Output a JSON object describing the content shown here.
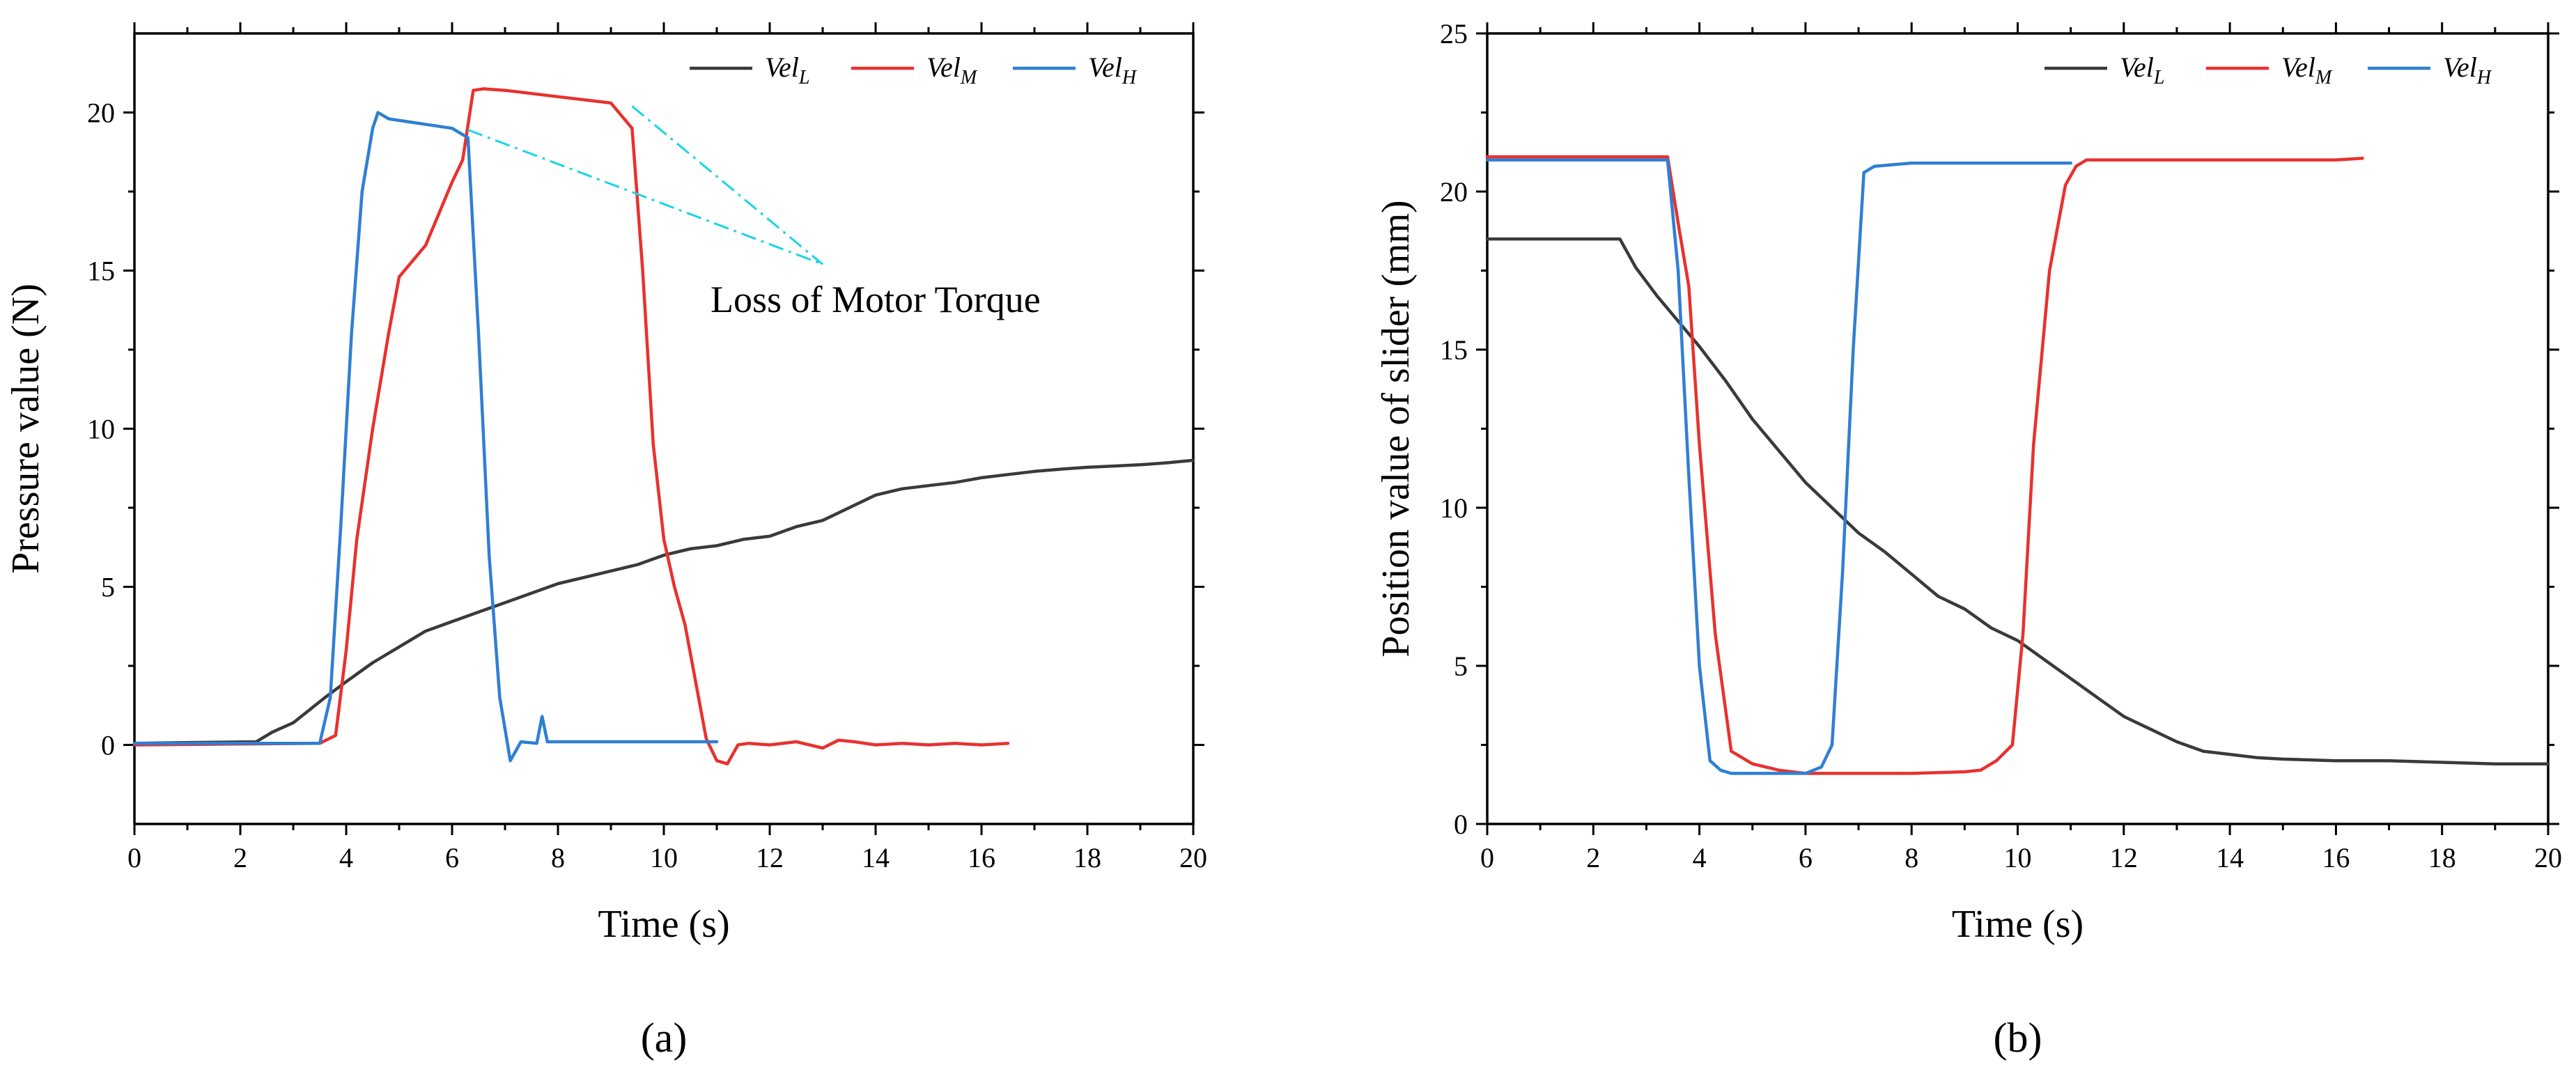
{
  "chart_data": [
    {
      "type": "line",
      "id": "a",
      "panel_label": "(a)",
      "xlabel": "Time (s)",
      "ylabel": "Pressure value (N)",
      "xlim": [
        0,
        20
      ],
      "ylim": [
        -2.5,
        22.5
      ],
      "xticks": [
        0,
        2,
        4,
        6,
        8,
        10,
        12,
        14,
        16,
        18,
        20
      ],
      "xtick_labels": [
        "0",
        "2",
        "4",
        "6",
        "8",
        "10",
        "12",
        "14",
        "16",
        "18",
        "20"
      ],
      "yticks": [
        0,
        5,
        10,
        15,
        20
      ],
      "ytick_labels": [
        "0",
        "5",
        "10",
        "15",
        "20"
      ],
      "legend_position": "top-right",
      "series": [
        {
          "name": "Vel_L",
          "base": "Vel",
          "sub": "L",
          "color": "#3a3a3a",
          "x": [
            0,
            2.3,
            2.6,
            3.0,
            3.3,
            3.6,
            4.0,
            4.5,
            5.0,
            5.5,
            6.0,
            6.5,
            7.0,
            7.5,
            8.0,
            8.5,
            9.0,
            9.5,
            10.0,
            10.5,
            11.0,
            11.5,
            12.0,
            12.5,
            13.0,
            13.5,
            14.0,
            14.5,
            15.0,
            15.5,
            16.0,
            16.5,
            17.0,
            17.5,
            18.0,
            18.5,
            19.0,
            19.5,
            20.0
          ],
          "y": [
            0.05,
            0.1,
            0.4,
            0.7,
            1.1,
            1.5,
            2.0,
            2.6,
            3.1,
            3.6,
            3.9,
            4.2,
            4.5,
            4.8,
            5.1,
            5.3,
            5.5,
            5.7,
            6.0,
            6.2,
            6.3,
            6.5,
            6.6,
            6.9,
            7.1,
            7.5,
            7.9,
            8.1,
            8.2,
            8.3,
            8.45,
            8.55,
            8.65,
            8.72,
            8.78,
            8.82,
            8.86,
            8.92,
            9.0
          ]
        },
        {
          "name": "Vel_M",
          "base": "Vel",
          "sub": "M",
          "color": "#e8312f",
          "x": [
            0,
            3.5,
            3.8,
            4.0,
            4.2,
            4.5,
            4.8,
            5.0,
            5.2,
            5.5,
            5.8,
            6.0,
            6.2,
            6.4,
            6.6,
            7.0,
            8.0,
            9.0,
            9.4,
            9.6,
            9.8,
            10.0,
            10.2,
            10.4,
            10.6,
            10.8,
            11.0,
            11.2,
            11.4,
            11.6,
            12.0,
            12.5,
            13.0,
            13.3,
            13.6,
            14.0,
            14.5,
            15.0,
            15.5,
            16.0,
            16.5
          ],
          "y": [
            0.0,
            0.05,
            0.3,
            3.0,
            6.5,
            10.0,
            13.0,
            14.8,
            15.2,
            15.8,
            17.0,
            17.8,
            18.5,
            20.7,
            20.75,
            20.7,
            20.5,
            20.3,
            19.5,
            15.0,
            9.5,
            6.5,
            5.0,
            3.8,
            2.0,
            0.2,
            -0.5,
            -0.6,
            0.0,
            0.05,
            0.0,
            0.1,
            -0.1,
            0.15,
            0.1,
            0.0,
            0.05,
            0.0,
            0.05,
            0.0,
            0.05
          ]
        },
        {
          "name": "Vel_H",
          "base": "Vel",
          "sub": "H",
          "color": "#2f7fd4",
          "x": [
            0,
            3.5,
            3.7,
            3.9,
            4.1,
            4.3,
            4.5,
            4.6,
            4.8,
            5.2,
            5.6,
            6.0,
            6.3,
            6.5,
            6.7,
            6.9,
            7.1,
            7.3,
            7.6,
            7.7,
            7.8,
            7.9,
            8.5,
            9.0,
            10.0,
            10.5,
            11.0
          ],
          "y": [
            0.05,
            0.05,
            1.5,
            7.0,
            13.0,
            17.5,
            19.5,
            20.0,
            19.8,
            19.7,
            19.6,
            19.5,
            19.2,
            13.0,
            6.0,
            1.5,
            -0.5,
            0.1,
            0.05,
            0.9,
            0.1,
            0.1,
            0.1,
            0.1,
            0.1,
            0.1,
            0.1
          ]
        }
      ],
      "annotation": {
        "text": "Loss of Motor Torque",
        "target": [
          13.0,
          15.2
        ],
        "from": [
          [
            6.3,
            19.45
          ],
          [
            9.4,
            20.2
          ]
        ],
        "color": "#19d4e6"
      }
    },
    {
      "type": "line",
      "id": "b",
      "panel_label": "(b)",
      "xlabel": "Time (s)",
      "ylabel": "Position value of slider (mm)",
      "xlim": [
        0,
        20
      ],
      "ylim": [
        0,
        25
      ],
      "xticks": [
        0,
        2,
        4,
        6,
        8,
        10,
        12,
        14,
        16,
        18,
        20
      ],
      "xtick_labels": [
        "0",
        "2",
        "4",
        "6",
        "8",
        "10",
        "12",
        "14",
        "16",
        "18",
        "20"
      ],
      "yticks": [
        0,
        5,
        10,
        15,
        20,
        25
      ],
      "ytick_labels": [
        "0",
        "5",
        "10",
        "15",
        "20",
        "25"
      ],
      "legend_position": "top-right",
      "series": [
        {
          "name": "Vel_L",
          "base": "Vel",
          "sub": "L",
          "color": "#3a3a3a",
          "x": [
            0,
            2.5,
            2.8,
            3.2,
            3.6,
            4.0,
            4.5,
            5.0,
            5.5,
            6.0,
            6.5,
            7.0,
            7.5,
            8.0,
            8.5,
            9.0,
            9.5,
            10.0,
            10.5,
            11.0,
            11.5,
            12.0,
            12.5,
            13.0,
            13.5,
            14.0,
            14.5,
            15.0,
            16.0,
            17.0,
            18.0,
            19.0,
            20.0
          ],
          "y": [
            18.5,
            18.5,
            17.6,
            16.7,
            15.9,
            15.1,
            14.0,
            12.8,
            11.8,
            10.8,
            10.0,
            9.2,
            8.6,
            7.9,
            7.2,
            6.8,
            6.2,
            5.8,
            5.2,
            4.6,
            4.0,
            3.4,
            3.0,
            2.6,
            2.3,
            2.2,
            2.1,
            2.05,
            2.0,
            2.0,
            1.95,
            1.9,
            1.9
          ]
        },
        {
          "name": "Vel_M",
          "base": "Vel",
          "sub": "M",
          "color": "#e8312f",
          "x": [
            0,
            3.4,
            3.6,
            3.8,
            4.0,
            4.3,
            4.6,
            5.0,
            5.5,
            6.0,
            6.5,
            7.0,
            8.0,
            9.0,
            9.3,
            9.6,
            9.9,
            10.1,
            10.3,
            10.6,
            10.9,
            11.1,
            11.3,
            12.0,
            13.0,
            14.0,
            15.0,
            16.0,
            16.5
          ],
          "y": [
            21.1,
            21.1,
            19.0,
            17.0,
            12.0,
            6.0,
            2.3,
            1.9,
            1.7,
            1.6,
            1.6,
            1.6,
            1.6,
            1.65,
            1.7,
            2.0,
            2.5,
            6.0,
            12.0,
            17.5,
            20.2,
            20.8,
            21.0,
            21.0,
            21.0,
            21.0,
            21.0,
            21.0,
            21.05
          ]
        },
        {
          "name": "Vel_H",
          "base": "Vel",
          "sub": "H",
          "color": "#2f7fd4",
          "x": [
            0,
            3.4,
            3.6,
            3.8,
            4.0,
            4.2,
            4.4,
            4.6,
            5.0,
            5.5,
            6.0,
            6.3,
            6.5,
            6.7,
            6.9,
            7.1,
            7.3,
            8.0,
            9.0,
            10.0,
            11.0
          ],
          "y": [
            21.0,
            21.0,
            17.5,
            11.0,
            5.0,
            2.0,
            1.7,
            1.6,
            1.6,
            1.6,
            1.6,
            1.8,
            2.5,
            8.0,
            15.0,
            20.6,
            20.8,
            20.9,
            20.9,
            20.9,
            20.9
          ]
        }
      ]
    }
  ]
}
